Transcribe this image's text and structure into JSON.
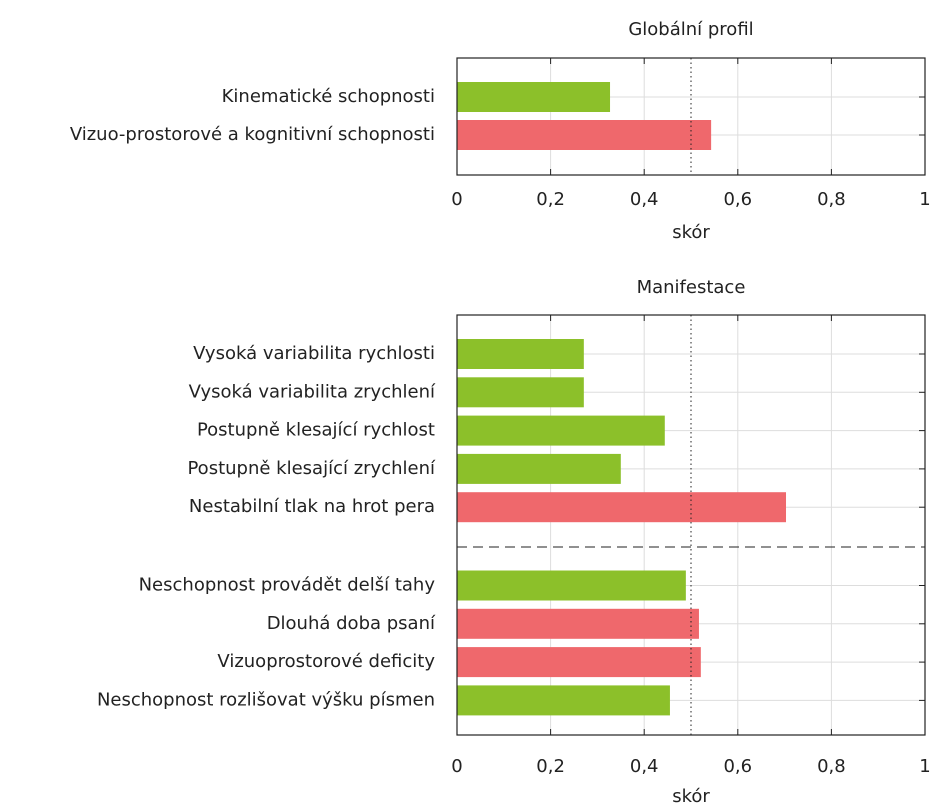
{
  "chart_data": [
    {
      "type": "barh",
      "title": "Globální profil",
      "xlabel": "skór",
      "categories": [
        "Kinematické schopnosti",
        "Vizuo-prostorové a kognitivní schopnosti"
      ],
      "values": [
        0.327,
        0.543
      ],
      "colors": [
        "#8cc02a",
        "#ef686c"
      ],
      "xlim": [
        0,
        1
      ],
      "xticks": [
        0,
        {
          "value": 0.2,
          "label": "0,2"
        },
        {
          "value": 0.4,
          "label": "0,4"
        },
        {
          "value": 0.6,
          "label": "0,6"
        },
        {
          "value": 0.8,
          "label": "0,8"
        },
        1
      ],
      "reference_line": 0.5,
      "grid": true
    },
    {
      "type": "barh",
      "title": "Manifestace",
      "xlabel": "skór",
      "categories": [
        "Vysoká variabilita rychlosti",
        "Vysoká variabilita zrychlení",
        "Postupně klesající rychlost",
        "Postupně klesající zrychlení",
        "Nestabilní tlak na hrot pera",
        "Neschopnost provádět delší tahy",
        "Dlouhá doba psaní",
        "Vizuoprostorové deficity",
        "Neschopnost rozlišovat výšku písmen"
      ],
      "values": [
        0.271,
        0.271,
        0.444,
        0.35,
        0.703,
        0.489,
        0.517,
        0.521,
        0.455
      ],
      "colors": [
        "#8cc02a",
        "#8cc02a",
        "#8cc02a",
        "#8cc02a",
        "#ef686c",
        "#8cc02a",
        "#ef686c",
        "#ef686c",
        "#8cc02a"
      ],
      "xlim": [
        0,
        1
      ],
      "xticks": [
        0,
        {
          "value": 0.2,
          "label": "0,2"
        },
        {
          "value": 0.4,
          "label": "0,4"
        },
        {
          "value": 0.6,
          "label": "0,6"
        },
        {
          "value": 0.8,
          "label": "0,8"
        },
        1
      ],
      "reference_line": 0.5,
      "grid": true
    }
  ]
}
